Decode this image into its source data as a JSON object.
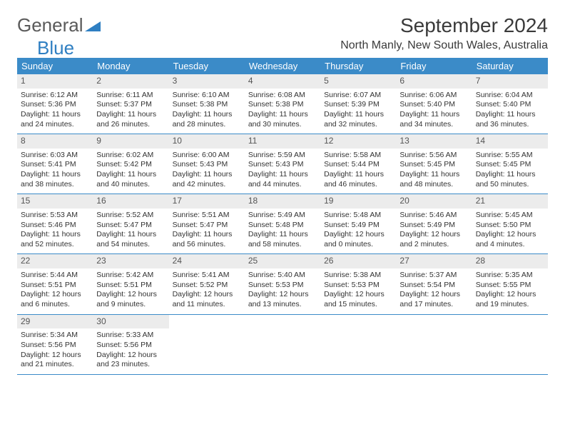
{
  "logo": {
    "part1": "General",
    "part2": "Blue"
  },
  "title": "September 2024",
  "location": "North Manly, New South Wales, Australia",
  "colors": {
    "header_bg": "#3b8bc8",
    "daynum_bg": "#ececec",
    "logo_gray": "#5a5a5a",
    "logo_blue": "#2f7fc2"
  },
  "weekdays": [
    "Sunday",
    "Monday",
    "Tuesday",
    "Wednesday",
    "Thursday",
    "Friday",
    "Saturday"
  ],
  "weeks": [
    [
      {
        "n": "1",
        "sr": "Sunrise: 6:12 AM",
        "ss": "Sunset: 5:36 PM",
        "d1": "Daylight: 11 hours",
        "d2": "and 24 minutes."
      },
      {
        "n": "2",
        "sr": "Sunrise: 6:11 AM",
        "ss": "Sunset: 5:37 PM",
        "d1": "Daylight: 11 hours",
        "d2": "and 26 minutes."
      },
      {
        "n": "3",
        "sr": "Sunrise: 6:10 AM",
        "ss": "Sunset: 5:38 PM",
        "d1": "Daylight: 11 hours",
        "d2": "and 28 minutes."
      },
      {
        "n": "4",
        "sr": "Sunrise: 6:08 AM",
        "ss": "Sunset: 5:38 PM",
        "d1": "Daylight: 11 hours",
        "d2": "and 30 minutes."
      },
      {
        "n": "5",
        "sr": "Sunrise: 6:07 AM",
        "ss": "Sunset: 5:39 PM",
        "d1": "Daylight: 11 hours",
        "d2": "and 32 minutes."
      },
      {
        "n": "6",
        "sr": "Sunrise: 6:06 AM",
        "ss": "Sunset: 5:40 PM",
        "d1": "Daylight: 11 hours",
        "d2": "and 34 minutes."
      },
      {
        "n": "7",
        "sr": "Sunrise: 6:04 AM",
        "ss": "Sunset: 5:40 PM",
        "d1": "Daylight: 11 hours",
        "d2": "and 36 minutes."
      }
    ],
    [
      {
        "n": "8",
        "sr": "Sunrise: 6:03 AM",
        "ss": "Sunset: 5:41 PM",
        "d1": "Daylight: 11 hours",
        "d2": "and 38 minutes."
      },
      {
        "n": "9",
        "sr": "Sunrise: 6:02 AM",
        "ss": "Sunset: 5:42 PM",
        "d1": "Daylight: 11 hours",
        "d2": "and 40 minutes."
      },
      {
        "n": "10",
        "sr": "Sunrise: 6:00 AM",
        "ss": "Sunset: 5:43 PM",
        "d1": "Daylight: 11 hours",
        "d2": "and 42 minutes."
      },
      {
        "n": "11",
        "sr": "Sunrise: 5:59 AM",
        "ss": "Sunset: 5:43 PM",
        "d1": "Daylight: 11 hours",
        "d2": "and 44 minutes."
      },
      {
        "n": "12",
        "sr": "Sunrise: 5:58 AM",
        "ss": "Sunset: 5:44 PM",
        "d1": "Daylight: 11 hours",
        "d2": "and 46 minutes."
      },
      {
        "n": "13",
        "sr": "Sunrise: 5:56 AM",
        "ss": "Sunset: 5:45 PM",
        "d1": "Daylight: 11 hours",
        "d2": "and 48 minutes."
      },
      {
        "n": "14",
        "sr": "Sunrise: 5:55 AM",
        "ss": "Sunset: 5:45 PM",
        "d1": "Daylight: 11 hours",
        "d2": "and 50 minutes."
      }
    ],
    [
      {
        "n": "15",
        "sr": "Sunrise: 5:53 AM",
        "ss": "Sunset: 5:46 PM",
        "d1": "Daylight: 11 hours",
        "d2": "and 52 minutes."
      },
      {
        "n": "16",
        "sr": "Sunrise: 5:52 AM",
        "ss": "Sunset: 5:47 PM",
        "d1": "Daylight: 11 hours",
        "d2": "and 54 minutes."
      },
      {
        "n": "17",
        "sr": "Sunrise: 5:51 AM",
        "ss": "Sunset: 5:47 PM",
        "d1": "Daylight: 11 hours",
        "d2": "and 56 minutes."
      },
      {
        "n": "18",
        "sr": "Sunrise: 5:49 AM",
        "ss": "Sunset: 5:48 PM",
        "d1": "Daylight: 11 hours",
        "d2": "and 58 minutes."
      },
      {
        "n": "19",
        "sr": "Sunrise: 5:48 AM",
        "ss": "Sunset: 5:49 PM",
        "d1": "Daylight: 12 hours",
        "d2": "and 0 minutes."
      },
      {
        "n": "20",
        "sr": "Sunrise: 5:46 AM",
        "ss": "Sunset: 5:49 PM",
        "d1": "Daylight: 12 hours",
        "d2": "and 2 minutes."
      },
      {
        "n": "21",
        "sr": "Sunrise: 5:45 AM",
        "ss": "Sunset: 5:50 PM",
        "d1": "Daylight: 12 hours",
        "d2": "and 4 minutes."
      }
    ],
    [
      {
        "n": "22",
        "sr": "Sunrise: 5:44 AM",
        "ss": "Sunset: 5:51 PM",
        "d1": "Daylight: 12 hours",
        "d2": "and 6 minutes."
      },
      {
        "n": "23",
        "sr": "Sunrise: 5:42 AM",
        "ss": "Sunset: 5:51 PM",
        "d1": "Daylight: 12 hours",
        "d2": "and 9 minutes."
      },
      {
        "n": "24",
        "sr": "Sunrise: 5:41 AM",
        "ss": "Sunset: 5:52 PM",
        "d1": "Daylight: 12 hours",
        "d2": "and 11 minutes."
      },
      {
        "n": "25",
        "sr": "Sunrise: 5:40 AM",
        "ss": "Sunset: 5:53 PM",
        "d1": "Daylight: 12 hours",
        "d2": "and 13 minutes."
      },
      {
        "n": "26",
        "sr": "Sunrise: 5:38 AM",
        "ss": "Sunset: 5:53 PM",
        "d1": "Daylight: 12 hours",
        "d2": "and 15 minutes."
      },
      {
        "n": "27",
        "sr": "Sunrise: 5:37 AM",
        "ss": "Sunset: 5:54 PM",
        "d1": "Daylight: 12 hours",
        "d2": "and 17 minutes."
      },
      {
        "n": "28",
        "sr": "Sunrise: 5:35 AM",
        "ss": "Sunset: 5:55 PM",
        "d1": "Daylight: 12 hours",
        "d2": "and 19 minutes."
      }
    ],
    [
      {
        "n": "29",
        "sr": "Sunrise: 5:34 AM",
        "ss": "Sunset: 5:56 PM",
        "d1": "Daylight: 12 hours",
        "d2": "and 21 minutes."
      },
      {
        "n": "30",
        "sr": "Sunrise: 5:33 AM",
        "ss": "Sunset: 5:56 PM",
        "d1": "Daylight: 12 hours",
        "d2": "and 23 minutes."
      },
      {
        "empty": true
      },
      {
        "empty": true
      },
      {
        "empty": true
      },
      {
        "empty": true
      },
      {
        "empty": true
      }
    ]
  ]
}
